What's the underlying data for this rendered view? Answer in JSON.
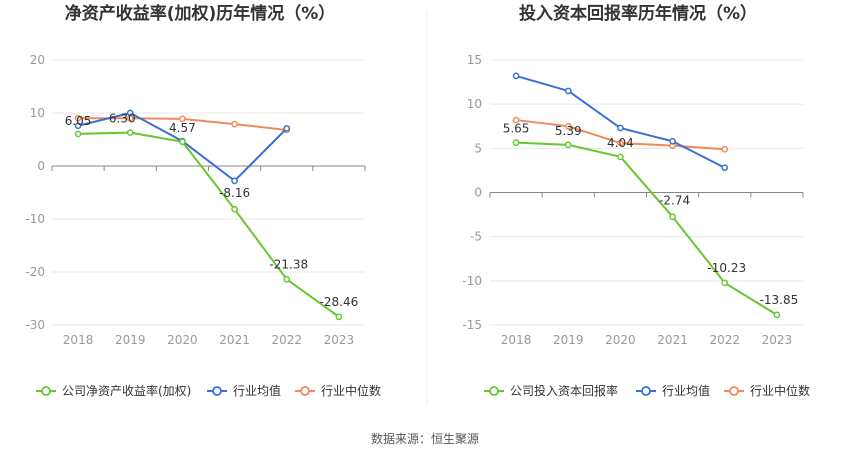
{
  "source_note": "数据来源：恒生聚源",
  "colors": {
    "company": "#66c730",
    "avg": "#3a6fd8",
    "median": "#f08a5d",
    "grid": "#e8e8e8",
    "axis": "#888888"
  },
  "chart_data": [
    {
      "type": "line",
      "title": "净资产收益率(加权)历年情况（%）",
      "categories": [
        "2018",
        "2019",
        "2020",
        "2021",
        "2022",
        "2023"
      ],
      "ylim": [
        -30,
        20
      ],
      "yticks": [
        20,
        10,
        0,
        -10,
        -20,
        -30
      ],
      "grid": true,
      "legend_position": "bottom",
      "series": [
        {
          "name": "公司净资产收益率(加权)",
          "key": "company",
          "values": [
            6.05,
            6.3,
            4.57,
            -8.16,
            -21.38,
            -28.46
          ],
          "labels": [
            "6.05",
            "6.30",
            "4.57",
            "-8.16",
            "-21.38",
            "-28.46"
          ]
        },
        {
          "name": "行业均值",
          "key": "avg",
          "values": [
            7.6,
            10.0,
            4.7,
            -2.8,
            7.1,
            null
          ]
        },
        {
          "name": "行业中位数",
          "key": "median",
          "values": [
            9.0,
            9.0,
            8.9,
            7.9,
            6.8,
            null
          ]
        }
      ]
    },
    {
      "type": "line",
      "title": "投入资本回报率历年情况（%）",
      "categories": [
        "2018",
        "2019",
        "2020",
        "2021",
        "2022",
        "2023"
      ],
      "ylim": [
        -15,
        15
      ],
      "yticks": [
        15,
        10,
        5,
        0,
        -5,
        -10,
        -15
      ],
      "grid": true,
      "legend_position": "bottom",
      "series": [
        {
          "name": "公司投入资本回报率",
          "key": "company",
          "values": [
            5.65,
            5.39,
            4.04,
            -2.74,
            -10.23,
            -13.85
          ],
          "labels": [
            "5.65",
            "5.39",
            "4.04",
            "-2.74",
            "-10.23",
            "-13.85"
          ]
        },
        {
          "name": "行业均值",
          "key": "avg",
          "values": [
            13.2,
            11.5,
            7.3,
            5.8,
            2.8,
            null
          ]
        },
        {
          "name": "行业中位数",
          "key": "median",
          "values": [
            8.2,
            7.5,
            5.6,
            5.3,
            4.9,
            null
          ]
        }
      ]
    }
  ]
}
